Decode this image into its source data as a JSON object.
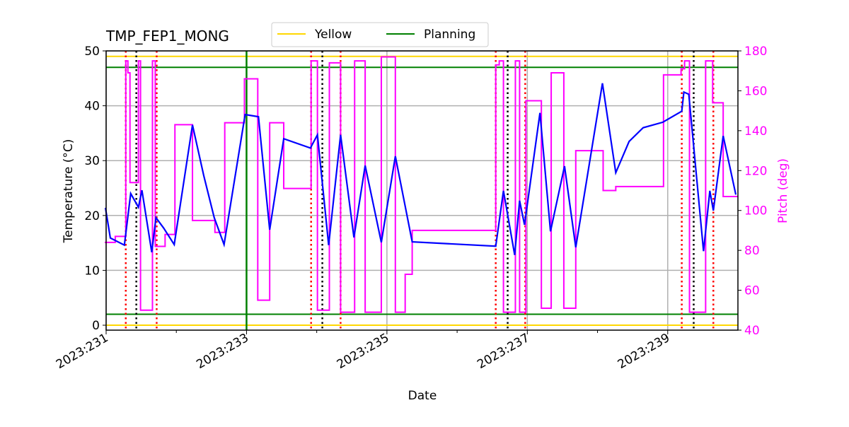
{
  "chart_data": {
    "type": "line",
    "title": "TMP_FEP1_MONG",
    "xlabel": "Date",
    "ylabel": "Temperature (°C)",
    "y2label": "Pitch (deg)",
    "xlim": [
      231,
      240
    ],
    "ylim": [
      -0.9,
      50
    ],
    "y2lim": [
      40,
      180
    ],
    "x_tick_labels": [
      {
        "value": 231,
        "label": "2023:231"
      },
      {
        "value": 233,
        "label": "2023:233"
      },
      {
        "value": 235,
        "label": "2023:235"
      },
      {
        "value": 237,
        "label": "2023:237"
      },
      {
        "value": 239,
        "label": "2023:239"
      }
    ],
    "x_minor_ticks": [
      232,
      234,
      236,
      238
    ],
    "y_ticks": [
      0,
      10,
      20,
      30,
      40,
      50
    ],
    "y2_ticks": [
      40,
      60,
      80,
      100,
      120,
      140,
      160,
      180
    ],
    "grid": true,
    "legend": {
      "placement": "top-center",
      "entries": [
        {
          "label": "Yellow",
          "color": "#ffd700"
        },
        {
          "label": "Planning",
          "color": "#008000"
        }
      ]
    },
    "limit_lines": [
      {
        "name": "Yellow",
        "values": [
          49,
          0
        ],
        "color": "#ffd700"
      },
      {
        "name": "Planning",
        "values": [
          47,
          2
        ],
        "color": "#008000"
      }
    ],
    "vertical_planning_line": 233.0,
    "red_dotted_lines": [
      231.28,
      231.72,
      233.92,
      234.34,
      236.55,
      236.97,
      239.2,
      239.65
    ],
    "black_dotted_lines": [
      231.43,
      234.08,
      236.72,
      239.37
    ],
    "temperature": {
      "color": "#0000ff",
      "points": [
        [
          230.99,
          21.4
        ],
        [
          231.06,
          15.9
        ],
        [
          231.26,
          14.6
        ],
        [
          231.35,
          24.0
        ],
        [
          231.46,
          21.5
        ],
        [
          231.51,
          24.6
        ],
        [
          231.65,
          13.3
        ],
        [
          231.71,
          19.6
        ],
        [
          231.82,
          17.7
        ],
        [
          231.97,
          14.7
        ],
        [
          232.23,
          36.5
        ],
        [
          232.39,
          27.3
        ],
        [
          232.54,
          19.6
        ],
        [
          232.68,
          14.7
        ],
        [
          232.98,
          38.4
        ],
        [
          233.17,
          38.0
        ],
        [
          233.33,
          17.4
        ],
        [
          233.53,
          34.0
        ],
        [
          233.91,
          32.3
        ],
        [
          234.01,
          34.7
        ],
        [
          234.17,
          14.6
        ],
        [
          234.34,
          34.7
        ],
        [
          234.53,
          16.0
        ],
        [
          234.69,
          29.1
        ],
        [
          234.92,
          15.1
        ],
        [
          235.12,
          30.8
        ],
        [
          235.36,
          15.2
        ],
        [
          236.55,
          14.4
        ],
        [
          236.66,
          24.5
        ],
        [
          236.82,
          12.8
        ],
        [
          236.89,
          22.7
        ],
        [
          236.96,
          18.3
        ],
        [
          237.18,
          38.7
        ],
        [
          237.33,
          17.1
        ],
        [
          237.53,
          29.0
        ],
        [
          237.69,
          14.2
        ],
        [
          238.07,
          44.1
        ],
        [
          238.26,
          27.8
        ],
        [
          238.45,
          33.5
        ],
        [
          238.65,
          36.0
        ],
        [
          238.93,
          37.0
        ],
        [
          239.2,
          39.0
        ],
        [
          239.23,
          42.5
        ],
        [
          239.3,
          42.1
        ],
        [
          239.51,
          13.5
        ],
        [
          239.6,
          24.5
        ],
        [
          239.65,
          20.9
        ],
        [
          239.79,
          34.5
        ],
        [
          239.97,
          23.8
        ]
      ]
    },
    "pitch": {
      "color": "#ff00ff",
      "steps": [
        [
          230.98,
          84
        ],
        [
          231.13,
          87
        ],
        [
          231.28,
          175
        ],
        [
          231.31,
          169
        ],
        [
          231.34,
          114
        ],
        [
          231.46,
          175
        ],
        [
          231.49,
          50
        ],
        [
          231.66,
          175
        ],
        [
          231.7,
          82
        ],
        [
          231.84,
          88
        ],
        [
          231.98,
          143
        ],
        [
          232.23,
          95
        ],
        [
          232.55,
          89
        ],
        [
          232.69,
          144
        ],
        [
          232.97,
          166
        ],
        [
          233.16,
          55
        ],
        [
          233.33,
          144
        ],
        [
          233.53,
          111
        ],
        [
          233.92,
          175
        ],
        [
          234.01,
          50
        ],
        [
          234.18,
          174
        ],
        [
          234.34,
          49
        ],
        [
          234.54,
          175
        ],
        [
          234.69,
          49
        ],
        [
          234.92,
          177
        ],
        [
          235.12,
          49
        ],
        [
          235.26,
          68
        ],
        [
          235.36,
          90
        ],
        [
          236.55,
          173
        ],
        [
          236.6,
          175
        ],
        [
          236.66,
          49
        ],
        [
          236.83,
          175
        ],
        [
          236.89,
          49
        ],
        [
          236.98,
          155
        ],
        [
          237.2,
          51
        ],
        [
          237.34,
          169
        ],
        [
          237.52,
          51
        ],
        [
          237.69,
          130
        ],
        [
          238.08,
          110
        ],
        [
          238.26,
          112
        ],
        [
          238.94,
          168
        ],
        [
          239.19,
          171
        ],
        [
          239.24,
          175
        ],
        [
          239.31,
          49
        ],
        [
          239.54,
          175
        ],
        [
          239.64,
          154
        ],
        [
          239.79,
          107
        ],
        [
          239.97,
          107
        ]
      ]
    }
  }
}
